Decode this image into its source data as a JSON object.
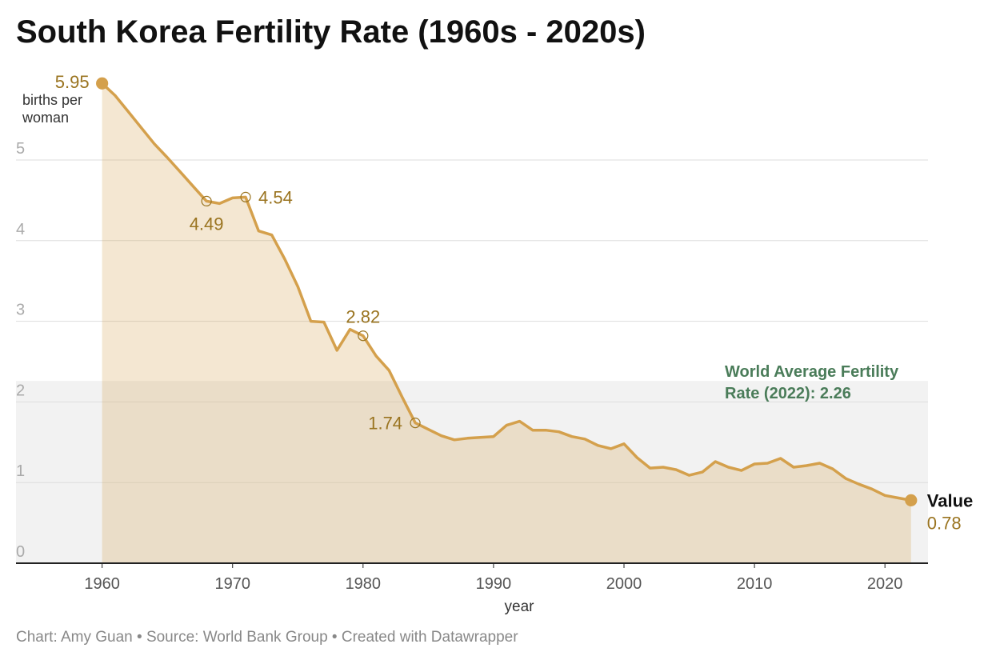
{
  "chart_data": {
    "type": "area",
    "title": "South Korea Fertility Rate (1960s - 2020s)",
    "y_label": "births per woman",
    "x_label": "year",
    "footer": "Chart: Amy Guan • Source: World Bank Group • Created with Datawrapper",
    "x": [
      1960,
      1961,
      1962,
      1963,
      1964,
      1965,
      1966,
      1967,
      1968,
      1969,
      1970,
      1971,
      1972,
      1973,
      1974,
      1975,
      1976,
      1977,
      1978,
      1979,
      1980,
      1981,
      1982,
      1983,
      1984,
      1985,
      1986,
      1987,
      1988,
      1989,
      1990,
      1991,
      1992,
      1993,
      1994,
      1995,
      1996,
      1997,
      1998,
      1999,
      2000,
      2001,
      2002,
      2003,
      2004,
      2005,
      2006,
      2007,
      2008,
      2009,
      2010,
      2011,
      2012,
      2013,
      2014,
      2015,
      2016,
      2017,
      2018,
      2019,
      2020,
      2021,
      2022
    ],
    "series": [
      {
        "name": "Value",
        "color": "#d4a04c",
        "values": [
          5.95,
          5.8,
          5.6,
          5.4,
          5.2,
          5.03,
          4.85,
          4.67,
          4.49,
          4.46,
          4.53,
          4.54,
          4.12,
          4.07,
          3.77,
          3.43,
          3.0,
          2.99,
          2.64,
          2.9,
          2.82,
          2.57,
          2.39,
          2.06,
          1.74,
          1.66,
          1.58,
          1.53,
          1.55,
          1.56,
          1.57,
          1.71,
          1.76,
          1.65,
          1.65,
          1.63,
          1.57,
          1.54,
          1.46,
          1.42,
          1.48,
          1.31,
          1.18,
          1.19,
          1.16,
          1.09,
          1.13,
          1.26,
          1.19,
          1.15,
          1.23,
          1.24,
          1.3,
          1.19,
          1.21,
          1.24,
          1.17,
          1.05,
          0.98,
          0.92,
          0.84,
          0.81,
          0.78
        ]
      }
    ],
    "highlight_x": [
      1960,
      1968,
      1971,
      1980,
      1984,
      2022
    ],
    "reference": {
      "value": 2.26,
      "label": "World Average Fertility Rate (2022): 2.26",
      "color": "#f2f2f2"
    },
    "xlim": [
      1953.4,
      2023.3
    ],
    "xticks": [
      1960,
      1970,
      1980,
      1990,
      2000,
      2010,
      2020
    ],
    "ylim": [
      0,
      6
    ],
    "yticks": [
      0,
      1,
      2,
      3,
      4,
      5
    ],
    "grid": true,
    "label_color": "#9a7420"
  }
}
